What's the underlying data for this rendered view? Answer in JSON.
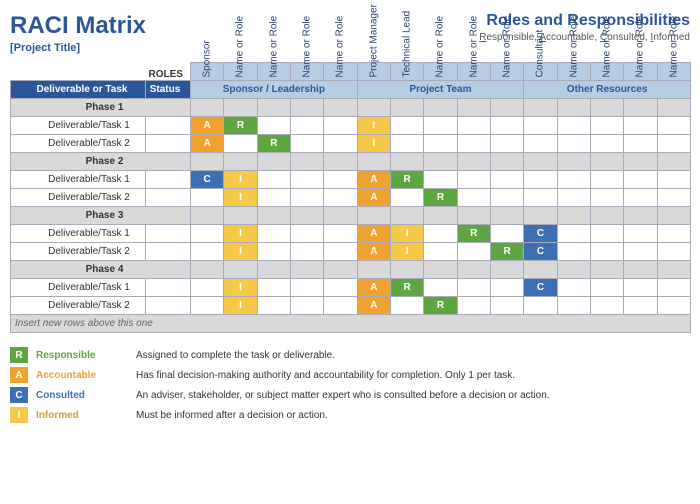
{
  "header": {
    "title": "RACI Matrix",
    "project": "[Project Title]",
    "rightTitle": "Roles and Responsibilities",
    "acronymParts": [
      "R",
      "esponsible, ",
      "A",
      "ccountable, ",
      "C",
      "onsulted, ",
      "I",
      "nformed"
    ]
  },
  "rolesLabel": "ROLES",
  "columnHeadersTask": "Deliverable or Task",
  "columnHeadersStatus": "Status",
  "roleGroups": [
    {
      "label": "Sponsor / Leadership",
      "roles": [
        "Sponsor",
        "Name or Role",
        "Name or Role",
        "Name or Role",
        "Name or Role"
      ]
    },
    {
      "label": "Project Team",
      "roles": [
        "Project Manager",
        "Technical Lead",
        "Name or Role",
        "Name or Role",
        "Name or Role"
      ]
    },
    {
      "label": "Other Resources",
      "roles": [
        "Consultant",
        "Name or Role",
        "Name or Role",
        "Name or Role",
        "Name or Role"
      ]
    }
  ],
  "phases": [
    {
      "name": "Phase 1",
      "tasks": [
        {
          "name": "Deliverable/Task 1",
          "cells": [
            "A",
            "R",
            "",
            "",
            "",
            "I",
            "",
            "",
            "",
            "",
            "",
            "",
            "",
            "",
            ""
          ]
        },
        {
          "name": "Deliverable/Task 2",
          "cells": [
            "A",
            "",
            "R",
            "",
            "",
            "I",
            "",
            "",
            "",
            "",
            "",
            "",
            "",
            "",
            ""
          ]
        }
      ]
    },
    {
      "name": "Phase 2",
      "tasks": [
        {
          "name": "Deliverable/Task 1",
          "cells": [
            "C",
            "I",
            "",
            "",
            "",
            "A",
            "R",
            "",
            "",
            "",
            "",
            "",
            "",
            "",
            ""
          ]
        },
        {
          "name": "Deliverable/Task 2",
          "cells": [
            "",
            "I",
            "",
            "",
            "",
            "A",
            "",
            "R",
            "",
            "",
            "",
            "",
            "",
            "",
            ""
          ]
        }
      ]
    },
    {
      "name": "Phase 3",
      "tasks": [
        {
          "name": "Deliverable/Task 1",
          "cells": [
            "",
            "I",
            "",
            "",
            "",
            "A",
            "I",
            "",
            "R",
            "",
            "C",
            "",
            "",
            "",
            ""
          ]
        },
        {
          "name": "Deliverable/Task 2",
          "cells": [
            "",
            "I",
            "",
            "",
            "",
            "A",
            "I",
            "",
            "",
            "R",
            "C",
            "",
            "",
            "",
            ""
          ]
        }
      ]
    },
    {
      "name": "Phase 4",
      "tasks": [
        {
          "name": "Deliverable/Task 1",
          "cells": [
            "",
            "I",
            "",
            "",
            "",
            "A",
            "R",
            "",
            "",
            "",
            "C",
            "",
            "",
            "",
            ""
          ]
        },
        {
          "name": "Deliverable/Task 2",
          "cells": [
            "",
            "I",
            "",
            "",
            "",
            "A",
            "",
            "R",
            "",
            "",
            "",
            "",
            "",
            "",
            ""
          ]
        }
      ]
    }
  ],
  "insertNote": "Insert new rows above this one",
  "legend": [
    {
      "code": "R",
      "label": "Responsible",
      "desc": "Assigned to complete the task or deliverable.",
      "color": "#5fa641"
    },
    {
      "code": "A",
      "label": "Accountable",
      "desc": "Has final decision-making authority and accountability for completion. Only 1 per task.",
      "color": "#f0a22e"
    },
    {
      "code": "C",
      "label": "Consulted",
      "desc": "An adviser, stakeholder, or subject matter expert who is consulted before a decision or action.",
      "color": "#3d6fb5"
    },
    {
      "code": "I",
      "label": "Informed",
      "desc": "Must be informed after a decision or action.",
      "color": "#f7c948"
    }
  ],
  "colors": {
    "R": "#5fa641",
    "A": "#f0a22e",
    "C": "#3d6fb5",
    "I": "#f7c948",
    "headerBlue": "#2b579a",
    "lightBlue": "#b8cce4",
    "grayRow": "#d9d9d9"
  }
}
